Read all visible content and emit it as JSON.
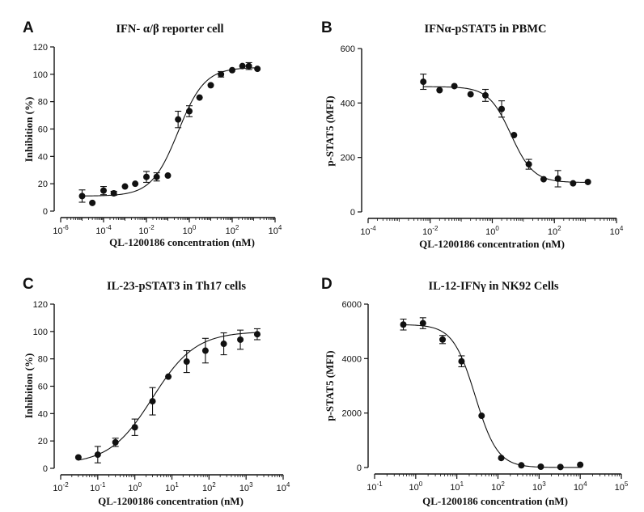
{
  "chart_data": [
    {
      "type": "scatter",
      "panel_label": "A",
      "title": "IFN- α/β reporter cell",
      "xlabel": "QL-1200186 concentration (nM)",
      "ylabel": "Inhibition (%)",
      "xscale": "log",
      "xlim_exp": [
        -6,
        4
      ],
      "ylim": [
        0,
        120
      ],
      "yticks": [
        0,
        20,
        40,
        60,
        80,
        100,
        120
      ],
      "fit": {
        "bottom": 11,
        "top": 105,
        "ec50": 0.3,
        "hill": 0.7
      },
      "points": [
        {
          "x": 1e-05,
          "y": 11,
          "err": 4.5
        },
        {
          "x": 3e-05,
          "y": 6,
          "err": 0
        },
        {
          "x": 0.0001,
          "y": 15,
          "err": 3
        },
        {
          "x": 0.0003,
          "y": 13,
          "err": 1.5
        },
        {
          "x": 0.001,
          "y": 18,
          "err": 0
        },
        {
          "x": 0.003,
          "y": 20,
          "err": 0
        },
        {
          "x": 0.01,
          "y": 25,
          "err": 4
        },
        {
          "x": 0.03,
          "y": 25,
          "err": 3
        },
        {
          "x": 0.1,
          "y": 26,
          "err": 0
        },
        {
          "x": 0.3,
          "y": 67,
          "err": 6
        },
        {
          "x": 1,
          "y": 73,
          "err": 4
        },
        {
          "x": 3,
          "y": 83,
          "err": 0
        },
        {
          "x": 10,
          "y": 92,
          "err": 0
        },
        {
          "x": 30,
          "y": 100,
          "err": 2
        },
        {
          "x": 100,
          "y": 103,
          "err": 0
        },
        {
          "x": 300,
          "y": 106,
          "err": 0
        },
        {
          "x": 600,
          "y": 106,
          "err": 2.5
        },
        {
          "x": 1500,
          "y": 104,
          "err": 0
        }
      ]
    },
    {
      "type": "scatter",
      "panel_label": "B",
      "title": "IFNα-pSTAT5 in PBMC",
      "xlabel": "QL-1200186 concentration (nM)",
      "ylabel": "p-STAT5 (MFI)",
      "xscale": "log",
      "xlim_exp": [
        -4,
        4
      ],
      "ylim": [
        0,
        600
      ],
      "yticks": [
        0,
        200,
        400,
        600
      ],
      "fit": {
        "bottom": 108,
        "top": 460,
        "ec50": 4,
        "hill": -1.2
      },
      "points": [
        {
          "x": 0.006,
          "y": 478,
          "err": 28
        },
        {
          "x": 0.02,
          "y": 447,
          "err": 0
        },
        {
          "x": 0.06,
          "y": 462,
          "err": 0
        },
        {
          "x": 0.2,
          "y": 432,
          "err": 0
        },
        {
          "x": 0.6,
          "y": 428,
          "err": 22
        },
        {
          "x": 2,
          "y": 378,
          "err": 30
        },
        {
          "x": 5,
          "y": 282,
          "err": 0
        },
        {
          "x": 15,
          "y": 175,
          "err": 18
        },
        {
          "x": 45,
          "y": 120,
          "err": 0
        },
        {
          "x": 130,
          "y": 122,
          "err": 30
        },
        {
          "x": 400,
          "y": 105,
          "err": 0
        },
        {
          "x": 1200,
          "y": 110,
          "err": 0
        }
      ]
    },
    {
      "type": "scatter",
      "panel_label": "C",
      "title": "IL-23-pSTAT3 in Th17 cells",
      "xlabel": "QL-1200186 concentration (nM)",
      "ylabel": "Inhibition (%)",
      "xscale": "log",
      "xlim_exp": [
        -2,
        4
      ],
      "ylim": [
        0,
        120
      ],
      "yticks": [
        0,
        20,
        40,
        60,
        80,
        100,
        120
      ],
      "fit": {
        "bottom": 3,
        "top": 100,
        "ec50": 3,
        "hill": 0.75
      },
      "points": [
        {
          "x": 0.03,
          "y": 8,
          "err": 0
        },
        {
          "x": 0.1,
          "y": 10,
          "err": 6
        },
        {
          "x": 0.3,
          "y": 19,
          "err": 3
        },
        {
          "x": 1,
          "y": 30,
          "err": 6
        },
        {
          "x": 3,
          "y": 49,
          "err": 10
        },
        {
          "x": 8,
          "y": 67,
          "err": 0
        },
        {
          "x": 25,
          "y": 78,
          "err": 8
        },
        {
          "x": 80,
          "y": 86,
          "err": 9
        },
        {
          "x": 250,
          "y": 91,
          "err": 8
        },
        {
          "x": 700,
          "y": 94,
          "err": 7
        },
        {
          "x": 2000,
          "y": 98,
          "err": 4
        }
      ]
    },
    {
      "type": "scatter",
      "panel_label": "D",
      "title": "IL-12-IFNγ in NK92 Cells",
      "xlabel": "QL-1200186 concentration (nM)",
      "ylabel": "p-STAT5 (MFI)",
      "xscale": "log",
      "xlim_exp": [
        -1,
        5
      ],
      "ylim": [
        0,
        6000
      ],
      "yticks": [
        0,
        2000,
        4000,
        6000
      ],
      "fit": {
        "bottom": 0,
        "top": 5250,
        "ec50": 28,
        "hill": -1.6
      },
      "points": [
        {
          "x": 0.5,
          "y": 5250,
          "err": 200
        },
        {
          "x": 1.5,
          "y": 5300,
          "err": 200
        },
        {
          "x": 4.5,
          "y": 4700,
          "err": 150
        },
        {
          "x": 13,
          "y": 3900,
          "err": 200
        },
        {
          "x": 40,
          "y": 1900,
          "err": 0
        },
        {
          "x": 120,
          "y": 350,
          "err": 0
        },
        {
          "x": 370,
          "y": 80,
          "err": 0
        },
        {
          "x": 1100,
          "y": 30,
          "err": 0
        },
        {
          "x": 3300,
          "y": 20,
          "err": 0
        },
        {
          "x": 10000,
          "y": 100,
          "err": 0
        }
      ]
    }
  ]
}
